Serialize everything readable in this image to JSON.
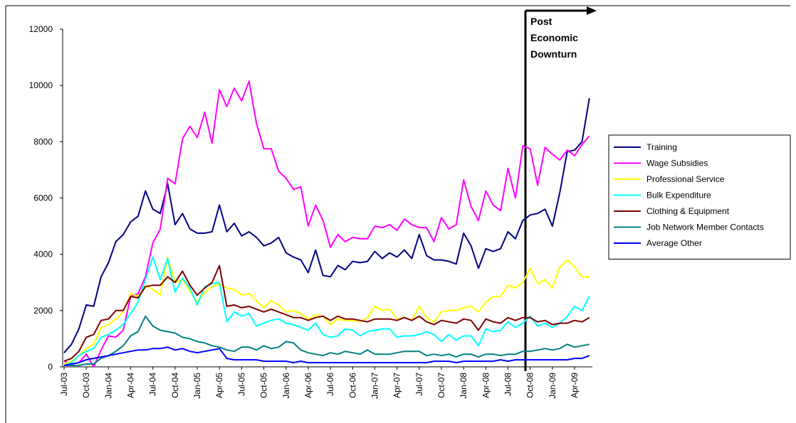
{
  "chart_data": {
    "type": "line",
    "categories": [
      "Jul-03",
      null,
      null,
      "Oct-03",
      null,
      null,
      "Jan-04",
      null,
      null,
      "Apr-04",
      null,
      null,
      "Jul-04",
      null,
      null,
      "Oct-04",
      null,
      null,
      "Jan-05",
      null,
      null,
      "Apr-05",
      null,
      null,
      "Jul-05",
      null,
      null,
      "Oct-05",
      null,
      null,
      "Jan-06",
      null,
      null,
      "Apr-06",
      null,
      null,
      "Jul-06",
      null,
      null,
      "Oct-06",
      null,
      null,
      "Jan-07",
      null,
      null,
      "Apr-07",
      null,
      null,
      "Jul-07",
      null,
      null,
      "Oct-07",
      null,
      null,
      "Jan-08",
      null,
      null,
      "Apr-08",
      null,
      null,
      "Jul-08",
      null,
      null,
      "Oct-08",
      null,
      null,
      "Jan-09",
      null,
      null,
      "Apr-09",
      null,
      null
    ],
    "series": [
      {
        "name": "Training",
        "color": "#000080",
        "values": [
          500,
          800,
          1350,
          2200,
          2150,
          3200,
          3700,
          4450,
          4700,
          5150,
          5350,
          6250,
          5600,
          5450,
          6500,
          5050,
          5450,
          4900,
          4750,
          4750,
          4800,
          5750,
          4800,
          5100,
          4650,
          4800,
          4600,
          4300,
          4400,
          4600,
          4050,
          3900,
          3800,
          3350,
          4150,
          3250,
          3200,
          3600,
          3450,
          3750,
          3700,
          3750,
          4100,
          3850,
          4050,
          3900,
          4150,
          3850,
          4700,
          3950,
          3800,
          3800,
          3750,
          3650,
          4750,
          4300,
          3500,
          4200,
          4100,
          4200,
          4800,
          4550,
          5200,
          5400,
          5450,
          5600,
          5000,
          6200,
          7650,
          7700,
          8000,
          9550
        ]
      },
      {
        "name": "Wage Subsidies",
        "color": "#ff00ff",
        "values": [
          200,
          100,
          150,
          450,
          0,
          600,
          1100,
          1050,
          1300,
          2500,
          2600,
          3200,
          4400,
          4900,
          6700,
          6500,
          8100,
          8550,
          8150,
          9050,
          7950,
          9850,
          9250,
          9900,
          9450,
          10150,
          8650,
          7750,
          7750,
          6950,
          6700,
          6300,
          6400,
          5000,
          5750,
          5200,
          4250,
          4700,
          4450,
          4600,
          4550,
          4550,
          5000,
          4950,
          5050,
          4850,
          5250,
          5050,
          4950,
          4950,
          4450,
          5300,
          4900,
          5050,
          6650,
          5700,
          5200,
          6250,
          5750,
          5550,
          7050,
          6000,
          7850,
          7750,
          6450,
          7800,
          7550,
          7350,
          7700,
          7500,
          7900,
          8200
        ]
      },
      {
        "name": "Professional Service",
        "color": "#ffff00",
        "values": [
          100,
          200,
          400,
          650,
          800,
          1400,
          1500,
          1700,
          1950,
          2600,
          2500,
          2900,
          2750,
          2550,
          3900,
          3000,
          3100,
          2700,
          2300,
          2650,
          2850,
          2950,
          2800,
          2750,
          2550,
          2600,
          2350,
          2100,
          2350,
          2200,
          1950,
          2000,
          1900,
          1700,
          1850,
          1800,
          1500,
          1700,
          1650,
          1650,
          1600,
          1750,
          2150,
          2000,
          2050,
          1700,
          1750,
          1650,
          2150,
          1750,
          1600,
          1950,
          2000,
          2000,
          2100,
          2150,
          1950,
          2300,
          2500,
          2500,
          2900,
          2800,
          3000,
          3500,
          2950,
          3100,
          2800,
          3550,
          3800,
          3550,
          3200,
          3200
        ]
      },
      {
        "name": "Bulk Expenditure",
        "color": "#00ffff",
        "values": [
          50,
          150,
          400,
          550,
          650,
          1050,
          1150,
          1300,
          1500,
          1900,
          2300,
          3100,
          3900,
          3100,
          3850,
          2650,
          3150,
          2800,
          2200,
          2850,
          2950,
          3000,
          1600,
          1950,
          1800,
          1900,
          1450,
          1550,
          1650,
          1700,
          1550,
          1500,
          1400,
          1300,
          1550,
          1150,
          1050,
          1100,
          1350,
          1300,
          1100,
          1250,
          1300,
          1350,
          1350,
          1050,
          1100,
          1100,
          1150,
          1250,
          1150,
          900,
          1150,
          950,
          1100,
          1100,
          750,
          1350,
          1250,
          1300,
          1600,
          1400,
          1550,
          1800,
          1450,
          1550,
          1400,
          1550,
          1800,
          2150,
          2000,
          2500
        ]
      },
      {
        "name": "Clothing & Equipment",
        "color": "#800000",
        "values": [
          200,
          300,
          550,
          1050,
          1150,
          1650,
          1700,
          2000,
          2000,
          2500,
          2450,
          2850,
          2900,
          2900,
          3200,
          3000,
          3400,
          2900,
          2550,
          2800,
          3000,
          3600,
          2150,
          2200,
          2100,
          2150,
          2050,
          1950,
          2050,
          1950,
          1850,
          1750,
          1750,
          1650,
          1750,
          1800,
          1650,
          1800,
          1700,
          1700,
          1650,
          1600,
          1700,
          1700,
          1700,
          1650,
          1750,
          1650,
          1800,
          1600,
          1500,
          1650,
          1600,
          1550,
          1700,
          1650,
          1300,
          1700,
          1600,
          1550,
          1750,
          1650,
          1750,
          1750,
          1600,
          1650,
          1500,
          1550,
          1550,
          1650,
          1600,
          1750
        ]
      },
      {
        "name": "Job Network Member Contacts",
        "color": "#008080",
        "values": [
          50,
          50,
          50,
          100,
          100,
          300,
          400,
          550,
          750,
          1100,
          1250,
          1800,
          1450,
          1300,
          1250,
          1200,
          1050,
          1000,
          900,
          850,
          750,
          700,
          600,
          550,
          700,
          700,
          600,
          750,
          650,
          700,
          900,
          850,
          600,
          500,
          450,
          400,
          500,
          450,
          550,
          500,
          450,
          600,
          450,
          450,
          450,
          500,
          550,
          550,
          550,
          400,
          450,
          400,
          450,
          350,
          450,
          450,
          350,
          450,
          450,
          400,
          450,
          450,
          550,
          550,
          600,
          650,
          600,
          650,
          800,
          700,
          750,
          800
        ]
      },
      {
        "name": "Average Other",
        "color": "#0000ff",
        "values": [
          50,
          100,
          150,
          250,
          300,
          350,
          400,
          450,
          500,
          550,
          600,
          600,
          650,
          650,
          700,
          600,
          650,
          550,
          500,
          550,
          600,
          650,
          300,
          250,
          250,
          250,
          250,
          200,
          200,
          200,
          200,
          150,
          200,
          150,
          150,
          150,
          150,
          150,
          150,
          150,
          150,
          150,
          150,
          150,
          150,
          150,
          150,
          150,
          150,
          150,
          200,
          200,
          200,
          150,
          200,
          200,
          200,
          200,
          200,
          250,
          200,
          250,
          250,
          250,
          250,
          250,
          250,
          250,
          250,
          300,
          300,
          400
        ]
      }
    ],
    "ylim": [
      0,
      12000
    ],
    "yticks": [
      0,
      2000,
      4000,
      6000,
      8000,
      10000,
      12000
    ],
    "grid": false,
    "legend": "right",
    "annotation": [
      "Post",
      "Economic",
      "Downturn"
    ]
  }
}
